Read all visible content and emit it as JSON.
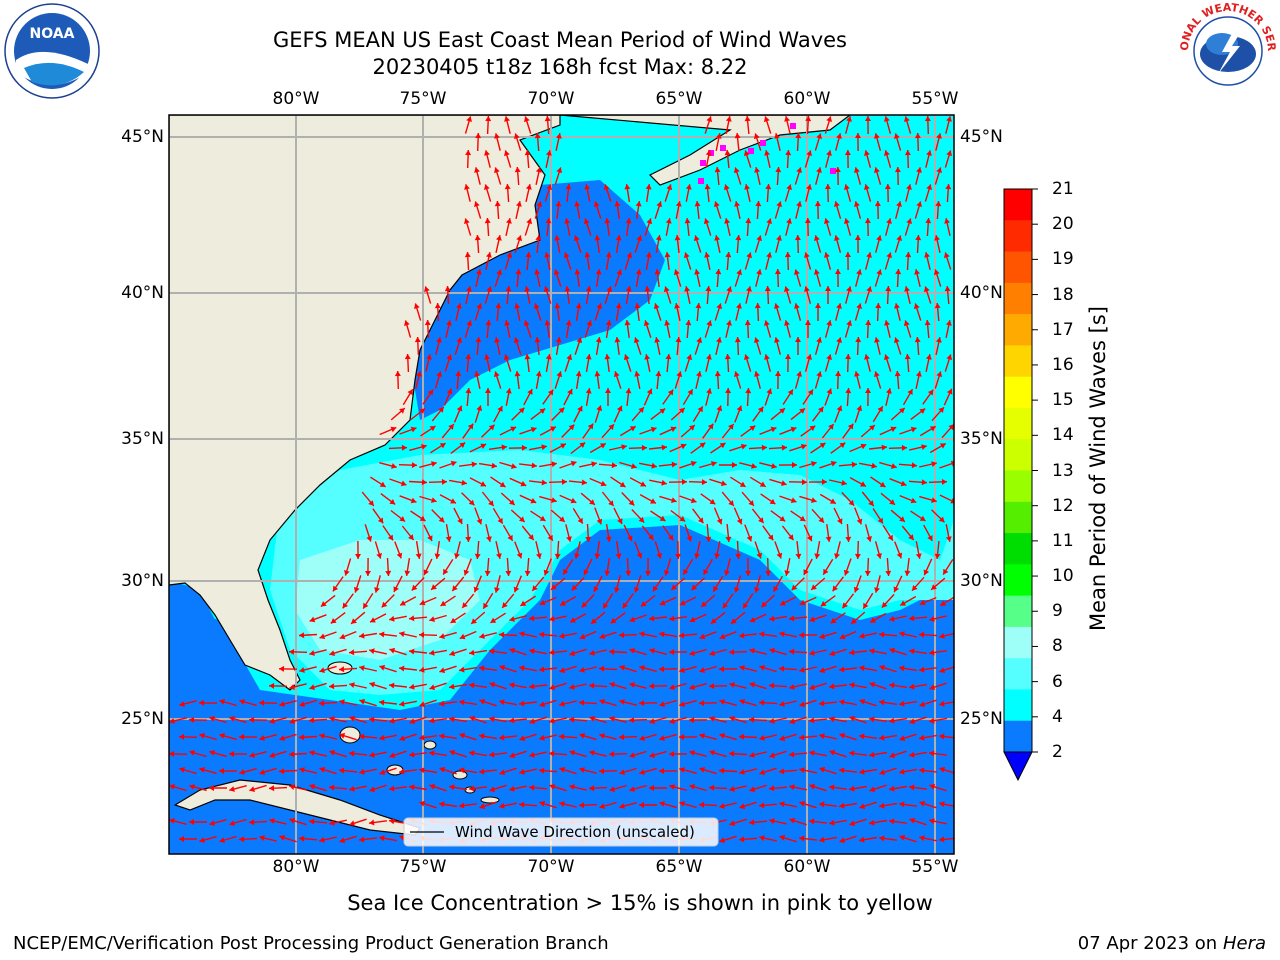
{
  "header": {
    "title_line1": "GEFS MEAN US East Coast Mean Period of Wind Waves",
    "title_line2": "20230405 t18z 168h fcst   Max: 8.22"
  },
  "map": {
    "lon_labels": [
      "80°W",
      "75°W",
      "70°W",
      "65°W",
      "60°W",
      "55°W"
    ],
    "lat_labels": [
      "45°N",
      "40°N",
      "35°N",
      "30°N",
      "25°N"
    ],
    "legend_label": "Wind Wave Direction (unscaled)",
    "colors": {
      "land": "#eeecdc",
      "arrow": "#ff0000",
      "gridline": "#b0b0b0",
      "sea_ice": "#ff00ff",
      "band_2_4": "#0a7bff",
      "band_4_6": "#00ffff",
      "band_6_8": "#55ffff",
      "band_8_9": "#9dfff8"
    }
  },
  "colorbar": {
    "label": "Mean Period of Wind Waves [s]",
    "ticks": [
      "21",
      "20",
      "19",
      "18",
      "17",
      "16",
      "15",
      "14",
      "13",
      "12",
      "11",
      "10",
      "9",
      "8",
      "6",
      "4",
      "2"
    ],
    "colors": [
      "#ff0000",
      "#ff2a00",
      "#ff5500",
      "#ff8000",
      "#ffaa00",
      "#ffd500",
      "#ffff00",
      "#e6ff00",
      "#ccff00",
      "#99ff00",
      "#55ee00",
      "#00dd00",
      "#00ff00",
      "#55ff88",
      "#9dfff8",
      "#55ffff",
      "#00ffff",
      "#0a7bff"
    ],
    "under_color": "#0000ff"
  },
  "footer": {
    "note": "Sea Ice Concentration > 15% is shown in pink to yellow",
    "org": "NCEP/EMC/Verification Post Processing Product Generation Branch",
    "date": "07 Apr 2023 on ",
    "host": "Hera"
  },
  "logos": {
    "noaa_text": "NOAA",
    "nws_text": "NATIONAL WEATHER SERVICE"
  }
}
